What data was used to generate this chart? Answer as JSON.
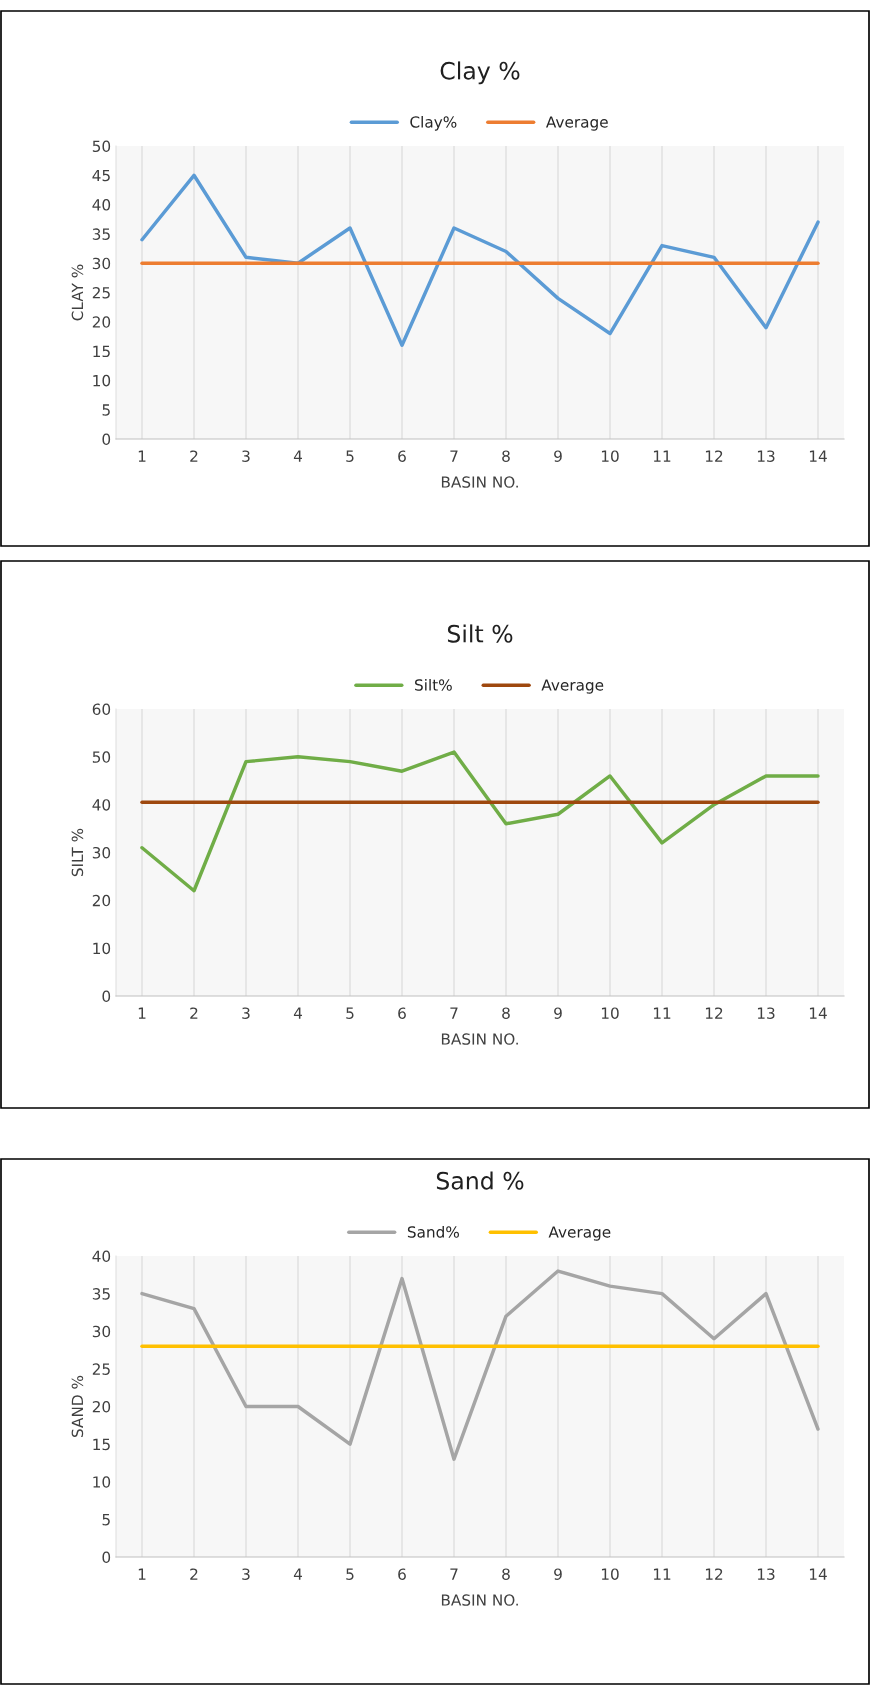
{
  "chart_data": [
    {
      "type": "line",
      "title": "Clay %",
      "xlabel": "BASIN NO.",
      "ylabel": "CLAY %",
      "categories": [
        "1",
        "2",
        "3",
        "4",
        "5",
        "6",
        "7",
        "8",
        "9",
        "10",
        "11",
        "12",
        "13",
        "14"
      ],
      "series": [
        {
          "name": "Clay%",
          "color": "#5b9bd5",
          "values": [
            34,
            45,
            31,
            30,
            36,
            16,
            36,
            32,
            24,
            18,
            33,
            31,
            19,
            37
          ]
        },
        {
          "name": "Average",
          "color": "#ed7d31",
          "values": [
            30,
            30,
            30,
            30,
            30,
            30,
            30,
            30,
            30,
            30,
            30,
            30,
            30,
            30
          ]
        }
      ],
      "ylim": [
        0,
        50
      ],
      "yticks": [
        0,
        5,
        10,
        15,
        20,
        25,
        30,
        35,
        40,
        45,
        50
      ],
      "grid": "x",
      "legend": "top"
    },
    {
      "type": "line",
      "title": "Silt %",
      "xlabel": "BASIN NO.",
      "ylabel": "SILT %",
      "categories": [
        "1",
        "2",
        "3",
        "4",
        "5",
        "6",
        "7",
        "8",
        "9",
        "10",
        "11",
        "12",
        "13",
        "14"
      ],
      "series": [
        {
          "name": "Silt%",
          "color": "#70ad47",
          "values": [
            31,
            22,
            49,
            50,
            49,
            47,
            51,
            36,
            38,
            46,
            32,
            40,
            46,
            46
          ]
        },
        {
          "name": "Average",
          "color": "#9e480e",
          "values": [
            40.5,
            40.5,
            40.5,
            40.5,
            40.5,
            40.5,
            40.5,
            40.5,
            40.5,
            40.5,
            40.5,
            40.5,
            40.5,
            40.5
          ]
        }
      ],
      "ylim": [
        0,
        60
      ],
      "yticks": [
        0,
        10,
        20,
        30,
        40,
        50,
        60
      ],
      "grid": "x",
      "legend": "top"
    },
    {
      "type": "line",
      "title": "Sand %",
      "xlabel": "BASIN NO.",
      "ylabel": "SAND %",
      "categories": [
        "1",
        "2",
        "3",
        "4",
        "5",
        "6",
        "7",
        "8",
        "9",
        "10",
        "11",
        "12",
        "13",
        "14"
      ],
      "series": [
        {
          "name": "Sand%",
          "color": "#a5a5a5",
          "values": [
            35,
            33,
            20,
            20,
            15,
            37,
            13,
            32,
            38,
            36,
            35,
            29,
            35,
            17
          ]
        },
        {
          "name": "Average",
          "color": "#ffc000",
          "values": [
            28,
            28,
            28,
            28,
            28,
            28,
            28,
            28,
            28,
            28,
            28,
            28,
            28,
            28
          ]
        }
      ],
      "ylim": [
        0,
        40
      ],
      "yticks": [
        0,
        5,
        10,
        15,
        20,
        25,
        30,
        35,
        40
      ],
      "grid": "x",
      "legend": "top"
    }
  ]
}
